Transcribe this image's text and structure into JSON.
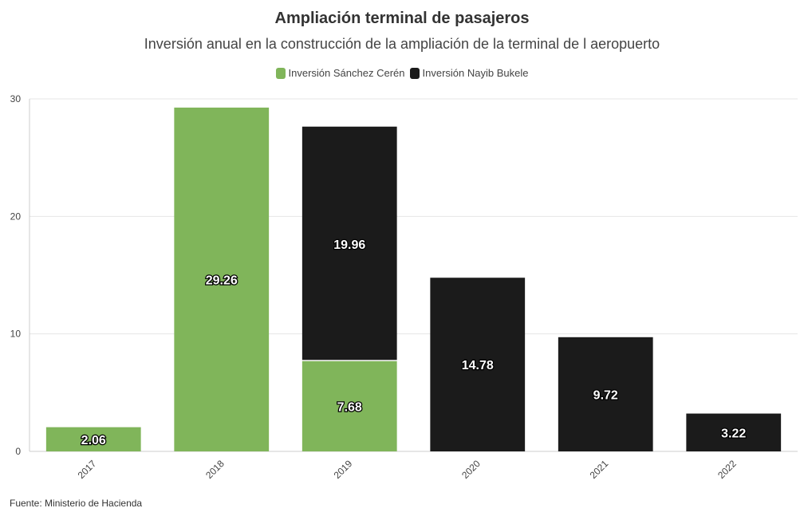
{
  "title": "Ampliación terminal de pasajeros",
  "subtitle": "Inversión anual en la construcción de la ampliación de la terminal de l aeropuerto",
  "source": "Fuente: Ministerio de Hacienda",
  "colors": {
    "sanchez": "#80b55a",
    "bukele": "#1b1b1b"
  },
  "chart_data": {
    "type": "bar",
    "stacked": true,
    "categories": [
      "2017",
      "2018",
      "2019",
      "2020",
      "2021",
      "2022"
    ],
    "series": [
      {
        "name": "Inversión Sánchez Cerén",
        "values": [
          2.06,
          29.26,
          7.68,
          0,
          0,
          0
        ]
      },
      {
        "name": "Inversión Nayib Bukele",
        "values": [
          0,
          0,
          19.96,
          14.78,
          9.72,
          3.22
        ]
      }
    ],
    "ylim": [
      0,
      30
    ],
    "yticks": [
      0,
      10,
      20,
      30
    ],
    "grid": true,
    "legend": "top-center"
  }
}
